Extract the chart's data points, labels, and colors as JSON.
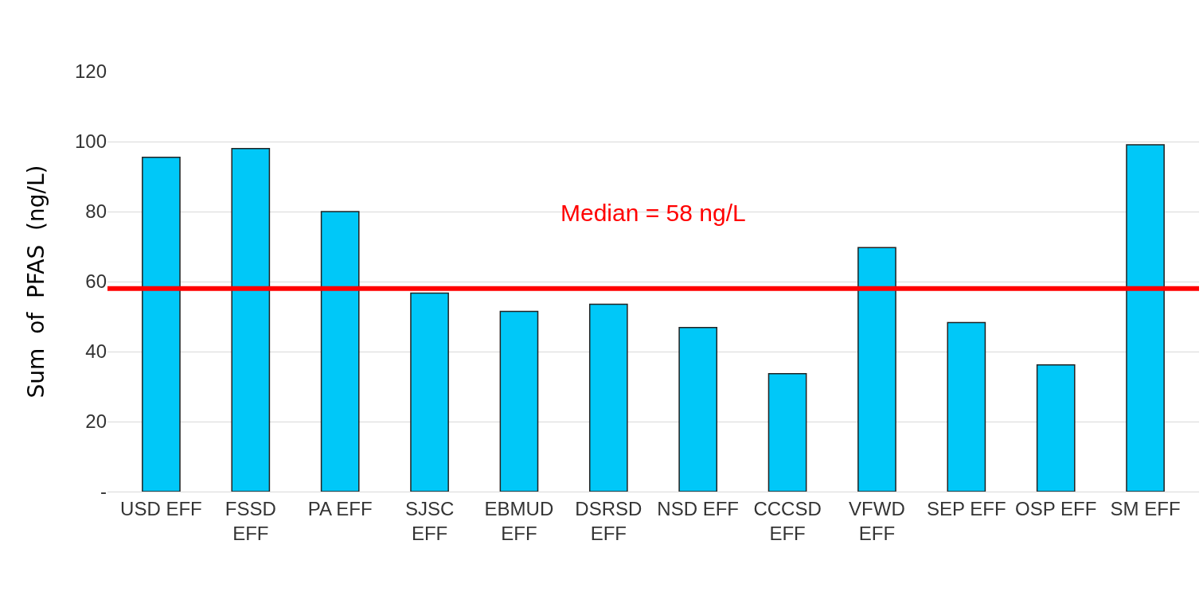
{
  "chart_data": {
    "type": "bar",
    "ylabel": "Sum  of  PFAS  (ng/L)",
    "categories": [
      "USD EFF",
      "FSSD\nEFF",
      "PA EFF",
      "SJSC\nEFF",
      "EBMUD\nEFF",
      "DSRSD\nEFF",
      "NSD EFF",
      "CCCSD\nEFF",
      "VFWD\nEFF",
      "SEP EFF",
      "OSP EFF",
      "SM EFF"
    ],
    "values": [
      95.5,
      98,
      80,
      56.7,
      51.5,
      53.5,
      46.9,
      33.7,
      69.7,
      48.3,
      36.2,
      99.1
    ],
    "color": "#00c8f8",
    "ylim": [
      0,
      120
    ],
    "yticks": [
      {
        "value": 0,
        "label": "-"
      },
      20,
      40,
      60,
      80,
      100,
      120
    ],
    "grid": "y",
    "ref_lines": [
      {
        "axis": "y",
        "value": 58,
        "label": "Median = 58 ng/L",
        "color": "#ff0000"
      }
    ]
  }
}
